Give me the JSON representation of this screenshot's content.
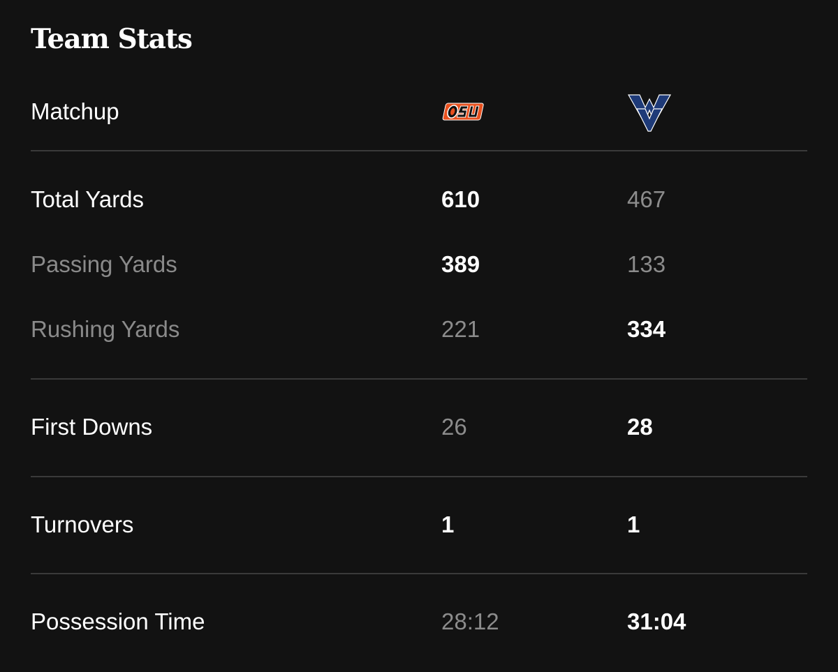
{
  "title": "Team Stats",
  "header": {
    "label": "Matchup",
    "team1_logo": "osu-logo",
    "team2_logo": "wvu-logo",
    "team1_color": "#e8501e",
    "team2_color": "#1e3a78"
  },
  "stats": {
    "total_yards": {
      "label": "Total Yards",
      "team1": "610",
      "team2": "467"
    },
    "passing_yards": {
      "label": "Passing Yards",
      "team1": "389",
      "team2": "133"
    },
    "rushing_yards": {
      "label": "Rushing Yards",
      "team1": "221",
      "team2": "334"
    },
    "first_downs": {
      "label": "First Downs",
      "team1": "26",
      "team2": "28"
    },
    "turnovers": {
      "label": "Turnovers",
      "team1": "1",
      "team2": "1"
    },
    "possession_time": {
      "label": "Possession Time",
      "team1": "28:12",
      "team2": "31:04"
    }
  }
}
